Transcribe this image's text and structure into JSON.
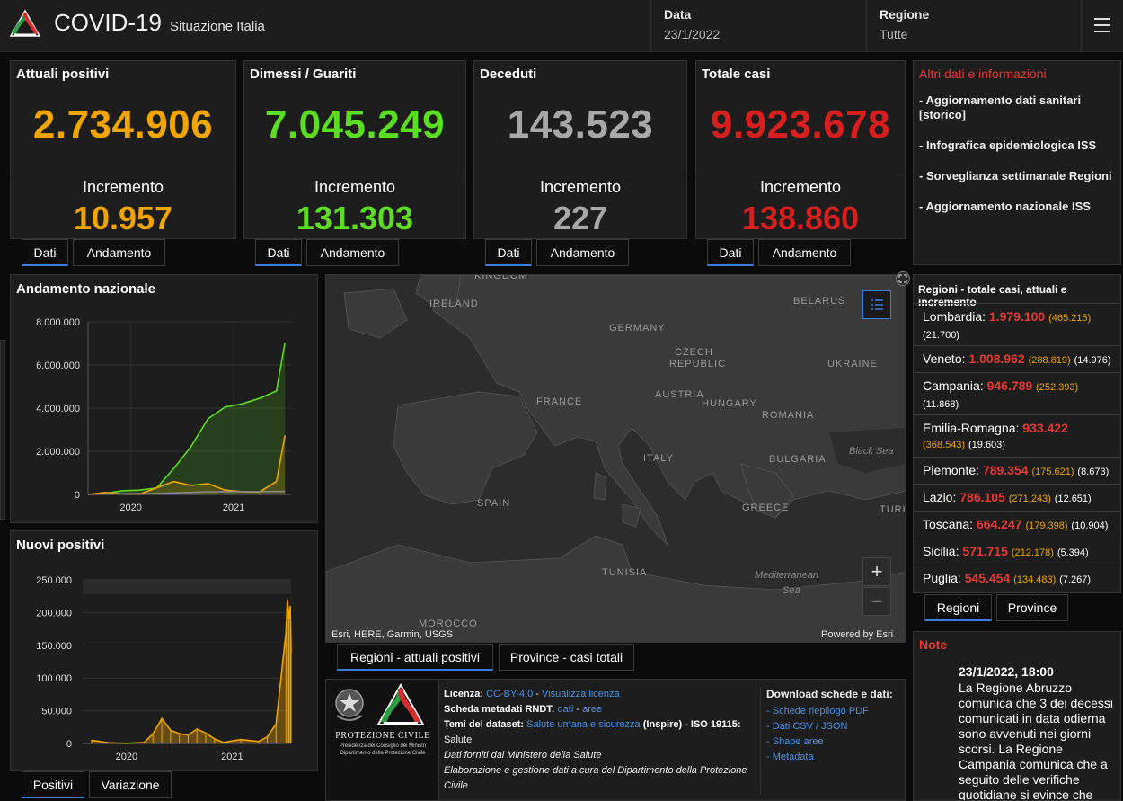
{
  "header": {
    "title": "COVID-19",
    "subtitle": "Situazione Italia",
    "data_label": "Data",
    "data_value": "23/1/2022",
    "regione_label": "Regione",
    "regione_value": "Tutte"
  },
  "cards": [
    {
      "title": "Attuali positivi",
      "value": "2.734.906",
      "inc_label": "Incremento",
      "inc": "10.957",
      "color": "#f0a500"
    },
    {
      "title": "Dimessi / Guariti",
      "value": "7.045.249",
      "inc_label": "Incremento",
      "inc": "131.303",
      "color": "#5cdc22"
    },
    {
      "title": "Deceduti",
      "value": "143.523",
      "inc_label": "Incremento",
      "inc": "227",
      "color": "#a8a8a8"
    },
    {
      "title": "Totale casi",
      "value": "9.923.678",
      "inc_label": "Incremento",
      "inc": "138.860",
      "color": "#d71f1f"
    }
  ],
  "card_tabs": {
    "dati": "Dati",
    "andamento": "Andamento"
  },
  "info": {
    "title": "Altri dati e informazioni",
    "items": [
      "- Aggiornamento dati sanitari [storico]",
      "- Infografica epidemiologica ISS",
      "- Sorveglianza settimanale Regioni",
      "- Aggiornamento nazionale ISS"
    ]
  },
  "andamento": {
    "title": "Andamento nazionale",
    "yticks": [
      "8.000.000",
      "6.000.000",
      "4.000.000",
      "2.000.000",
      "0"
    ],
    "xticks": [
      "2020",
      "2021"
    ]
  },
  "nuovi": {
    "title": "Nuovi positivi",
    "yticks": [
      "250.000",
      "200.000",
      "150.000",
      "100.000",
      "50.000",
      "0"
    ],
    "xticks": [
      "2020",
      "2021"
    ],
    "tab_positivi": "Positivi",
    "tab_variazione": "Variazione"
  },
  "chart_data": [
    {
      "type": "area",
      "title": "Andamento nazionale",
      "ylim": [
        0,
        8000000
      ],
      "x": [
        "2020-02",
        "2020-04",
        "2020-06",
        "2020-08",
        "2020-10",
        "2020-12",
        "2021-02",
        "2021-04",
        "2021-06",
        "2021-08",
        "2021-10",
        "2021-12",
        "2022-01"
      ],
      "series": [
        {
          "color": "#5cdc22",
          "values": [
            0,
            50000,
            170000,
            200000,
            300000,
            1200000,
            2200000,
            3500000,
            4050000,
            4200000,
            4450000,
            4800000,
            7045249
          ]
        },
        {
          "color": "#f0a500",
          "values": [
            0,
            90000,
            30000,
            15000,
            300000,
            600000,
            420000,
            500000,
            200000,
            130000,
            110000,
            600000,
            2734906
          ]
        },
        {
          "color": "#888888",
          "values": [
            0,
            25000,
            34000,
            35000,
            45000,
            70000,
            95000,
            115000,
            127000,
            128000,
            131000,
            136000,
            143523
          ]
        }
      ]
    },
    {
      "type": "bar",
      "title": "Nuovi positivi",
      "ylim": [
        0,
        250000
      ],
      "x": [
        "2020-03",
        "2020-05",
        "2020-07",
        "2020-09",
        "2020-10",
        "2020-11",
        "2020-12",
        "2021-01",
        "2021-02",
        "2021-03",
        "2021-04",
        "2021-05",
        "2021-06",
        "2021-08",
        "2021-10",
        "2021-11",
        "2021-12",
        "2022-01-05",
        "2022-01-10",
        "2022-01-15",
        "2022-01-20",
        "2022-01-23"
      ],
      "values": [
        5000,
        1000,
        300,
        1500,
        15000,
        38000,
        20000,
        15000,
        13000,
        22000,
        16000,
        7000,
        1500,
        6000,
        3000,
        10000,
        30000,
        170000,
        220000,
        190000,
        210000,
        138860
      ],
      "color": "#f0a500"
    }
  ],
  "map": {
    "labels": [
      {
        "text": "KINGDOM"
      },
      {
        "text": "IRELAND"
      },
      {
        "text": "GERMANY"
      },
      {
        "text": "CZECH"
      },
      {
        "text": "REPUBLIC"
      },
      {
        "text": "BELARUS"
      },
      {
        "text": "UKRAINE"
      },
      {
        "text": "FRANCE"
      },
      {
        "text": "AUSTRIA"
      },
      {
        "text": "HUNGARY"
      },
      {
        "text": "ROMANIA"
      },
      {
        "text": "ITALY"
      },
      {
        "text": "BULGARIA"
      },
      {
        "text": "SPAIN"
      },
      {
        "text": "GREECE"
      },
      {
        "text": "TURK"
      },
      {
        "text": "TUNISIA"
      },
      {
        "text": "MOROCCO"
      }
    ],
    "seas": [
      {
        "text": "Black Sea"
      },
      {
        "text": "Mediterranean"
      },
      {
        "text": "Sea"
      }
    ],
    "credit_left": "Esri, HERE, Garmin, USGS",
    "credit_right": "Powered by Esri",
    "tab_regioni": "Regioni - attuali positivi",
    "tab_province": "Province - casi totali"
  },
  "regions": {
    "title": "Regioni - totale casi, attuali e incremento",
    "items": [
      {
        "name": "Lombardia: ",
        "tot": "1.979.100",
        "att": "(465.215)",
        "inc": "(21.700)"
      },
      {
        "name": "Veneto: ",
        "tot": "1.008.962",
        "att": "(288.819)",
        "inc": "(14.976)"
      },
      {
        "name": "Campania: ",
        "tot": "946.789",
        "att": "(252.393)",
        "inc": "(11.868)"
      },
      {
        "name": "Emilia-Romagna: ",
        "tot": "933.422",
        "att": "(368.543)",
        "inc": "(19.603)"
      },
      {
        "name": "Piemonte: ",
        "tot": "789.354",
        "att": "(175.621)",
        "inc": "(8.673)"
      },
      {
        "name": "Lazio: ",
        "tot": "786.105",
        "att": "(271.243)",
        "inc": "(12.651)"
      },
      {
        "name": "Toscana: ",
        "tot": "664.247",
        "att": "(179.398)",
        "inc": "(10.904)"
      },
      {
        "name": "Sicilia: ",
        "tot": "571.715",
        "att": "(212.178)",
        "inc": "(5.394)"
      },
      {
        "name": "Puglia: ",
        "tot": "545.454",
        "att": "(134.483)",
        "inc": "(7.267)"
      }
    ],
    "tab_regioni": "Regioni",
    "tab_province": "Province"
  },
  "note": {
    "title": "Note",
    "date": "23/1/2022, 18:00",
    "text": "La Regione Abruzzo comunica che 3 dei decessi comunicati in data odierna sono avvenuti nei giorni scorsi. La Regione Campania comunica che a seguito delle verifiche quotidiane si evince che"
  },
  "footer": {
    "logo_text": "PROTEZIONE CIVILE",
    "logo_sub1": "Presidenza del Consiglio dei Ministri",
    "logo_sub2": "Dipartimento della Protezione Civile",
    "licenza_label": "Licenza:",
    "licenza_value": "CC-BY-4.0",
    "licenza_link": "Visualizza licenza",
    "rndt_label": "Scheda metadati RNDT:",
    "rndt_dati": "dati",
    "rndt_aree": "aree",
    "temi_label": "Temi del dataset:",
    "temi_link": "Salute umana e sicurezza",
    "temi_rest": "(Inspire) - ISO 19115:",
    "temi_rest2": "Salute",
    "fonte": "Dati forniti dal Ministero della Salute",
    "elaborazione": "Elaborazione e gestione dati a cura del Dipartimento della Protezione Civile",
    "download_title": "Download schede e dati:",
    "download_items": [
      "Schede riepilogo PDF",
      "Dati CSV / JSON",
      "Shape aree",
      "Metadata"
    ]
  }
}
